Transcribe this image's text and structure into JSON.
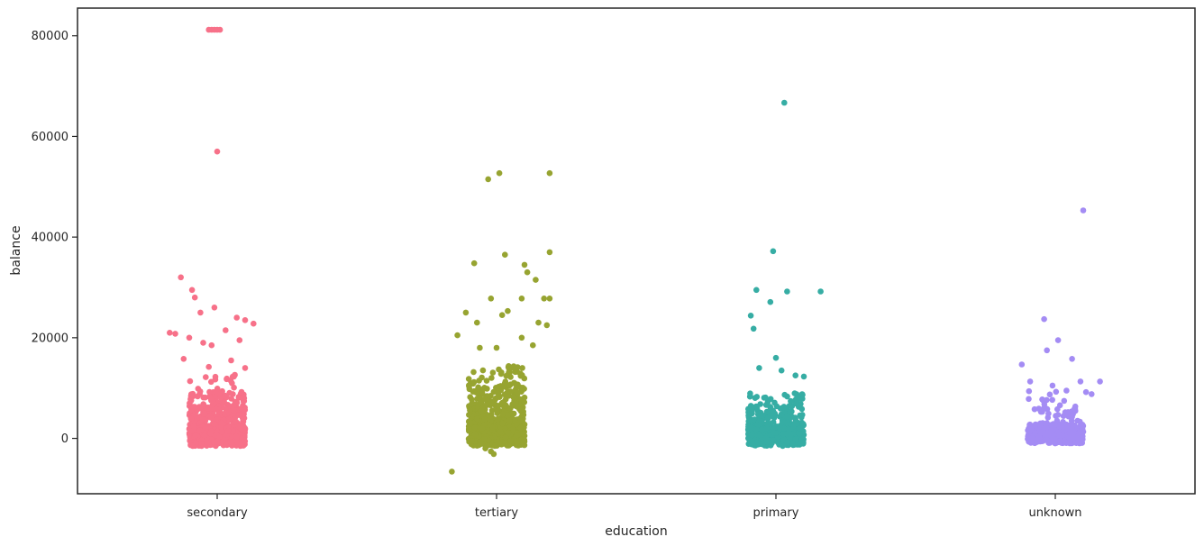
{
  "chart_data": {
    "type": "scatter",
    "subtype": "strip",
    "title": "",
    "xlabel": "education",
    "ylabel": "balance",
    "ylim": [
      -11000,
      85500
    ],
    "yticks": [
      0,
      20000,
      40000,
      60000,
      80000
    ],
    "ytick_labels": [
      "0",
      "20000",
      "40000",
      "60000",
      "80000"
    ],
    "grid": false,
    "legend": "none",
    "categories": [
      "secondary",
      "tertiary",
      "primary",
      "unknown"
    ],
    "colors": [
      "#f77189",
      "#97a431",
      "#36ada4",
      "#a48cf4"
    ],
    "highlighted_points": {
      "secondary": [
        [
          -0.03,
          81200
        ],
        [
          -0.02,
          81200
        ],
        [
          -0.01,
          81200
        ],
        [
          0.0,
          81200
        ],
        [
          0.01,
          81200
        ],
        [
          0.0,
          57000
        ],
        [
          -0.13,
          32000
        ],
        [
          -0.09,
          29500
        ],
        [
          -0.08,
          28000
        ],
        [
          -0.01,
          26000
        ],
        [
          -0.06,
          25000
        ],
        [
          0.07,
          24000
        ],
        [
          0.1,
          23500
        ],
        [
          0.13,
          22800
        ],
        [
          -0.17,
          21000
        ],
        [
          -0.15,
          20800
        ],
        [
          -0.1,
          20000
        ],
        [
          0.08,
          19500
        ],
        [
          -0.05,
          19000
        ],
        [
          -0.02,
          18500
        ],
        [
          0.03,
          21500
        ],
        [
          -0.12,
          15800
        ],
        [
          0.05,
          15500
        ],
        [
          -0.03,
          14200
        ],
        [
          0.1,
          14000
        ]
      ],
      "tertiary": [
        [
          -0.03,
          51500
        ],
        [
          0.01,
          52700
        ],
        [
          0.19,
          52700
        ],
        [
          -0.08,
          34800
        ],
        [
          0.03,
          36500
        ],
        [
          0.19,
          37000
        ],
        [
          0.1,
          34500
        ],
        [
          0.11,
          33000
        ],
        [
          0.14,
          31500
        ],
        [
          -0.11,
          25000
        ],
        [
          -0.02,
          27800
        ],
        [
          0.09,
          27800
        ],
        [
          0.17,
          27800
        ],
        [
          0.19,
          27800
        ],
        [
          0.04,
          25300
        ],
        [
          0.02,
          24500
        ],
        [
          0.15,
          23000
        ],
        [
          -0.07,
          23000
        ],
        [
          0.18,
          22500
        ],
        [
          -0.14,
          20500
        ],
        [
          0.09,
          20000
        ],
        [
          0.0,
          18000
        ],
        [
          0.13,
          18500
        ],
        [
          -0.06,
          18000
        ],
        [
          -0.04,
          -2000
        ],
        [
          -0.02,
          -2600
        ],
        [
          -0.01,
          -3100
        ],
        [
          -0.16,
          -6600
        ]
      ],
      "primary": [
        [
          0.03,
          66700
        ],
        [
          -0.01,
          37200
        ],
        [
          -0.07,
          29500
        ],
        [
          0.04,
          29200
        ],
        [
          0.16,
          29200
        ],
        [
          -0.02,
          27100
        ],
        [
          -0.09,
          24400
        ],
        [
          -0.08,
          21800
        ],
        [
          0.0,
          16000
        ],
        [
          -0.06,
          14000
        ],
        [
          0.02,
          13500
        ],
        [
          0.07,
          12500
        ],
        [
          0.1,
          12300
        ]
      ],
      "unknown": [
        [
          0.1,
          45300
        ],
        [
          -0.04,
          23700
        ],
        [
          0.01,
          19500
        ],
        [
          -0.03,
          17500
        ],
        [
          0.06,
          15800
        ],
        [
          -0.12,
          14700
        ],
        [
          -0.09,
          11300
        ],
        [
          0.09,
          11300
        ],
        [
          0.16,
          11300
        ],
        [
          -0.01,
          10500
        ],
        [
          0.04,
          9500
        ],
        [
          0.11,
          9200
        ],
        [
          0.13,
          8800
        ]
      ]
    }
  }
}
